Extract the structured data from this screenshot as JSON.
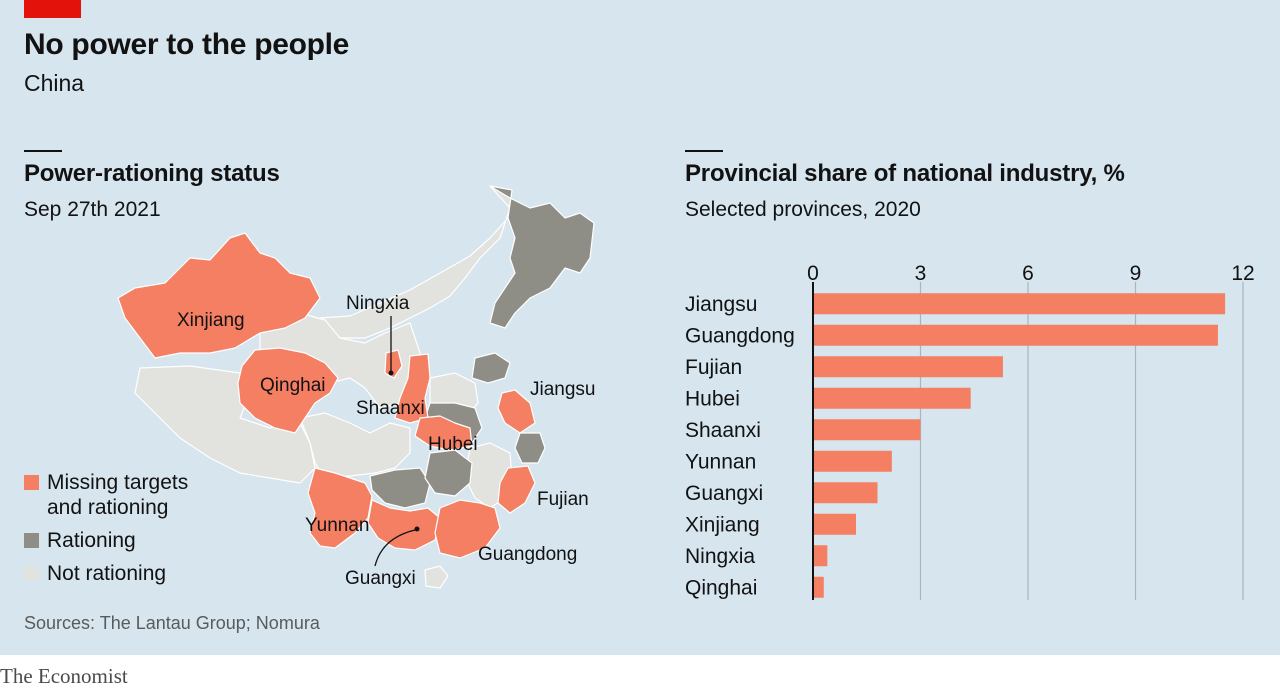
{
  "header": {
    "title": "No power to the people",
    "subtitle": "China"
  },
  "map": {
    "title": "Power-rationing status",
    "subtitle": "Sep 27th 2021",
    "legend": [
      {
        "label": "Missing targets\nand rationing",
        "color": "#f47f63"
      },
      {
        "label": "Rationing",
        "color": "#8f8e86"
      },
      {
        "label": "Not rationing",
        "color": "#e2e3de"
      }
    ],
    "labels": {
      "xinjiang": "Xinjiang",
      "qinghai": "Qinghai",
      "ningxia": "Ningxia",
      "shaanxi": "Shaanxi",
      "hubei": "Hubei",
      "jiangsu": "Jiangsu",
      "fujian": "Fujian",
      "yunnan": "Yunnan",
      "guangxi": "Guangxi",
      "guangdong": "Guangdong"
    }
  },
  "source": "Sources: The Lantau Group; Nomura",
  "footer": "The Economist",
  "chart_data": {
    "type": "bar",
    "orientation": "horizontal",
    "title": "Provincial share of national industry, %",
    "subtitle": "Selected provinces, 2020",
    "categories": [
      "Jiangsu",
      "Guangdong",
      "Fujian",
      "Hubei",
      "Shaanxi",
      "Yunnan",
      "Guangxi",
      "Xinjiang",
      "Ningxia",
      "Qinghai"
    ],
    "values": [
      11.5,
      11.3,
      5.3,
      4.4,
      3.0,
      2.2,
      1.8,
      1.2,
      0.4,
      0.3
    ],
    "xlim": [
      0,
      12
    ],
    "xticks": [
      0,
      3,
      6,
      9,
      12
    ],
    "axis_position": "top",
    "grid": true,
    "bar_color": "#f47f63"
  }
}
